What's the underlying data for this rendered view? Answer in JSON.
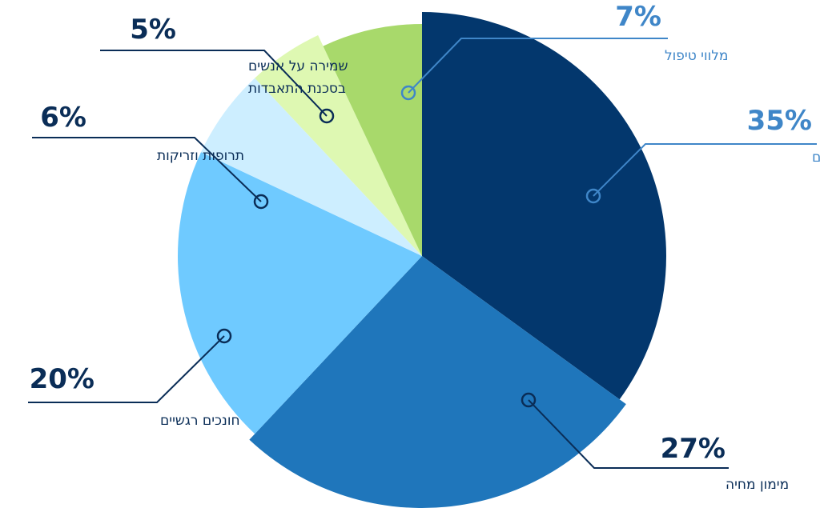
{
  "chart_data": {
    "type": "pie",
    "slices": [
      {
        "label": "מימון טיפולים",
        "value": 35,
        "value_label": "35%",
        "color": "#03376d",
        "text_color": "#3f86c8"
      },
      {
        "label": "מימון מחיה",
        "value": 27,
        "value_label": "27%",
        "color": "#1f76bb",
        "text_color": "#0a2d57"
      },
      {
        "label": "חונכים רגשיים",
        "value": 20,
        "value_label": "20%",
        "color": "#6fcaff",
        "text_color": "#0a2d57"
      },
      {
        "label": "תרופות וזריקות",
        "value": 6,
        "value_label": "6%",
        "color": "#cdeeff",
        "text_color": "#0a2d57"
      },
      {
        "label": [
          "שמירה על אנשים",
          "בסכנת התאבדות"
        ],
        "value": 5,
        "value_label": "5%",
        "color": "#def8b2",
        "text_color": "#0a2d57"
      },
      {
        "label": "מלווי טיפול",
        "value": 7,
        "value_label": "7%",
        "color": "#a8d96b",
        "text_color": "#3f86c8"
      }
    ]
  }
}
